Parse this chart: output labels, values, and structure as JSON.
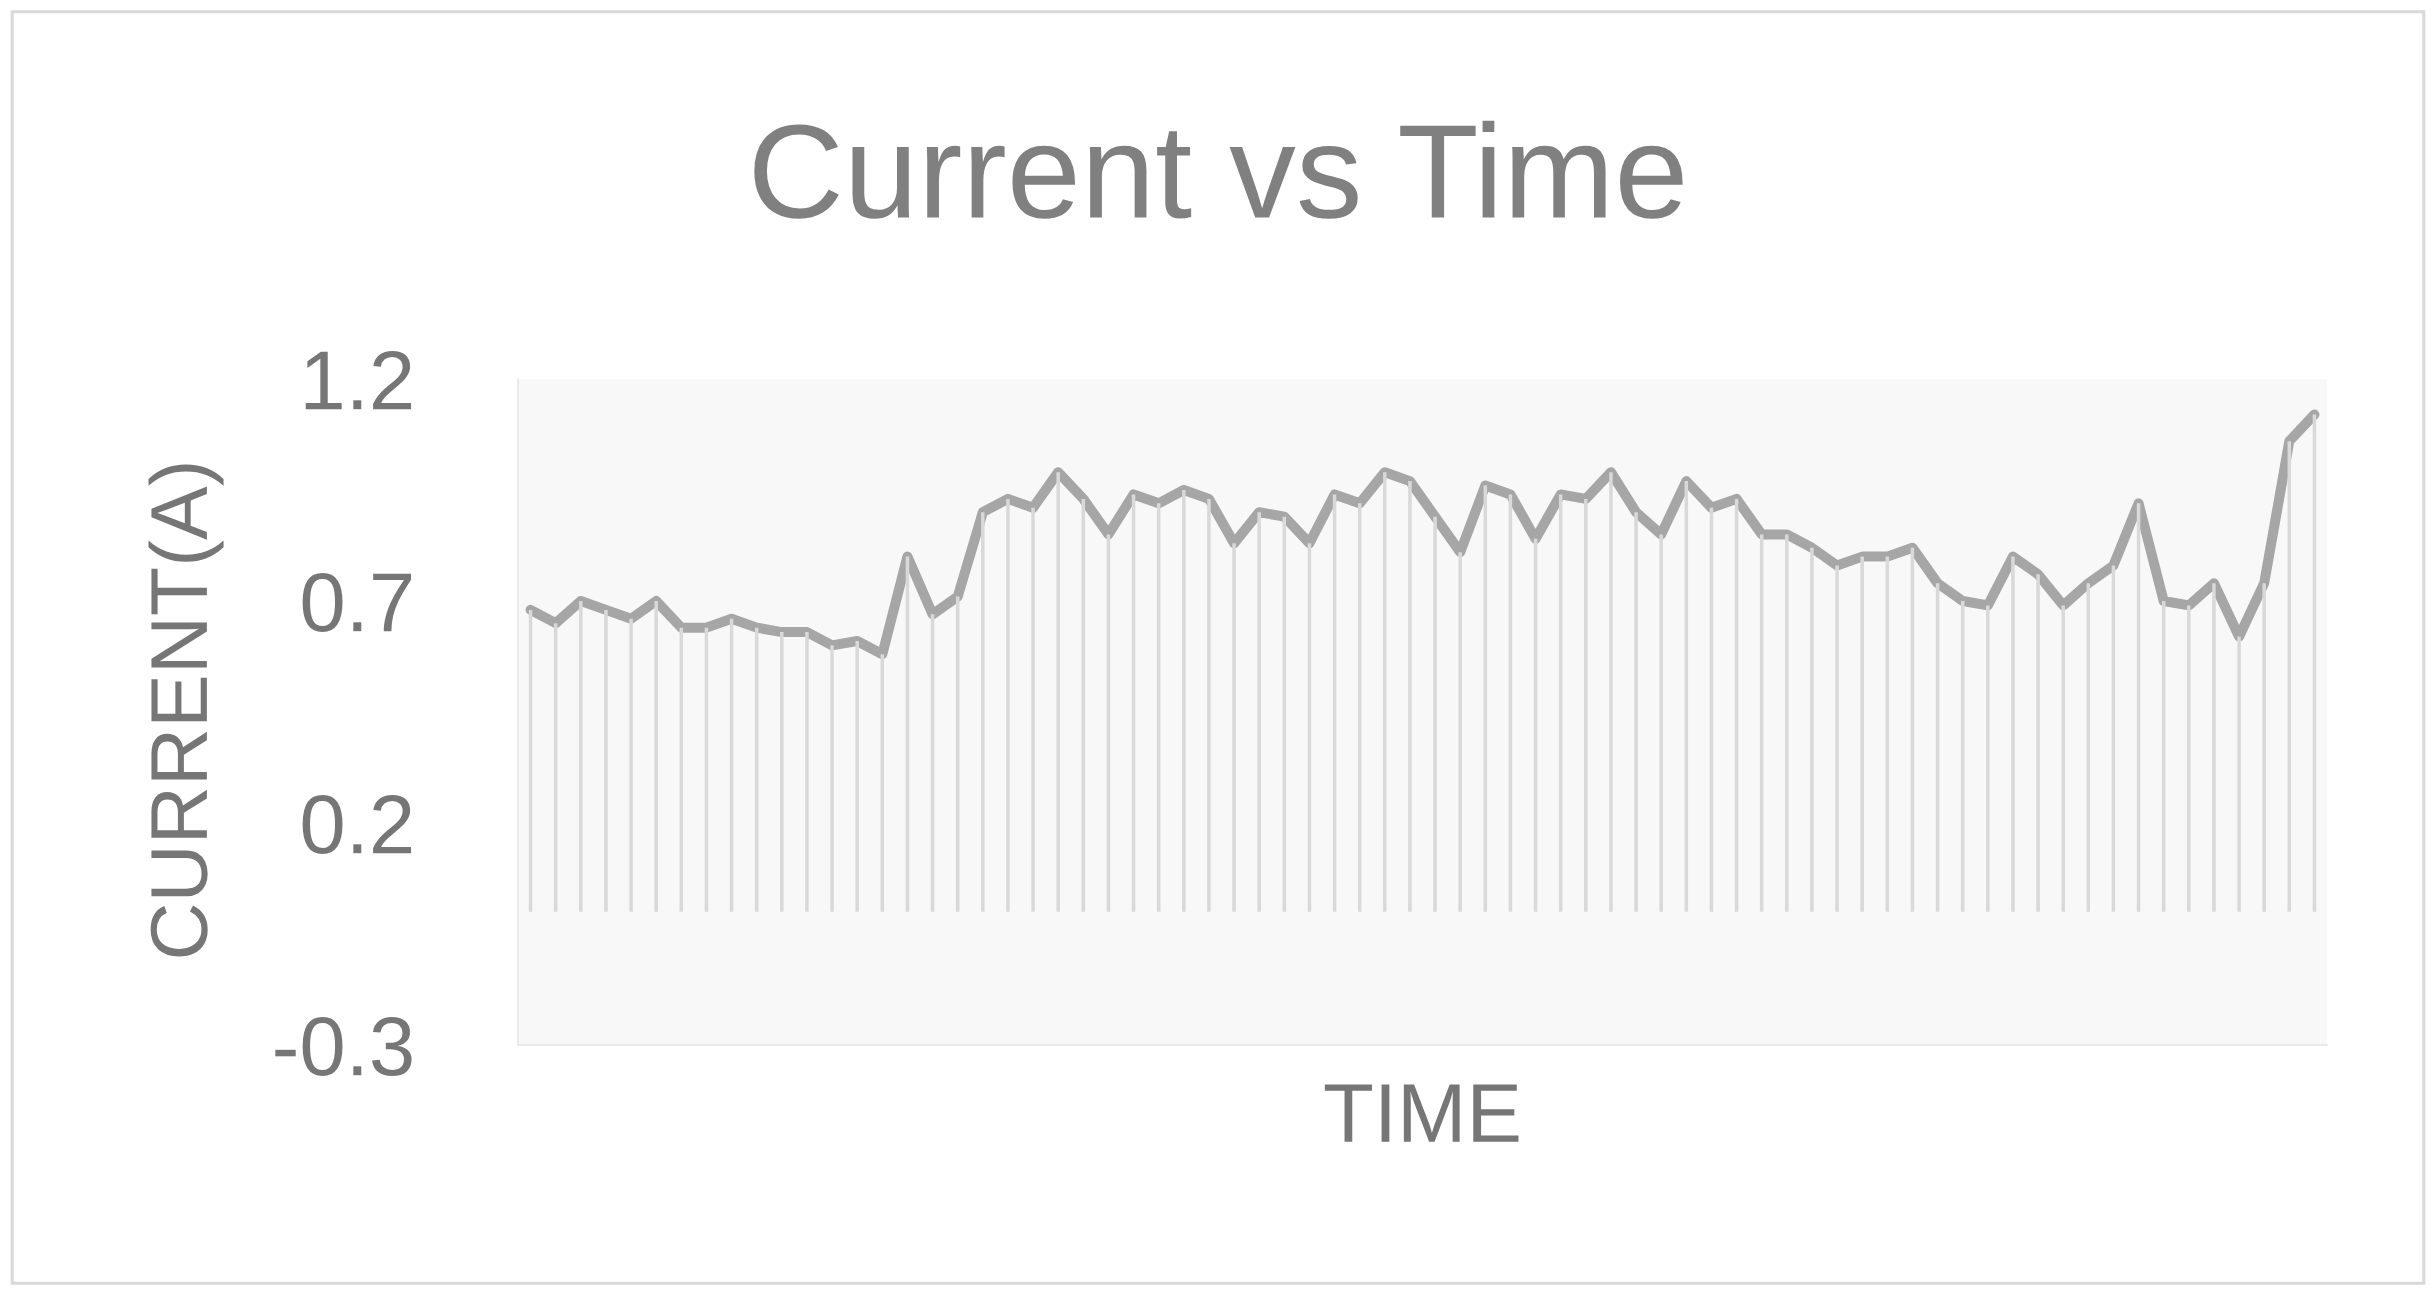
{
  "chart_data": {
    "type": "line",
    "title": "Current vs Time",
    "xlabel": "TIME",
    "ylabel": "CURRENT(A)",
    "categories": [
      null,
      null,
      null,
      null,
      null,
      null,
      null,
      null,
      null,
      null,
      null,
      null,
      null,
      null,
      null,
      null,
      null,
      null,
      null,
      null,
      null,
      null,
      null,
      null,
      null,
      null,
      null,
      null,
      null,
      null,
      null,
      null,
      null,
      null,
      null,
      null,
      null,
      null,
      null,
      null,
      null,
      null,
      null,
      null,
      null,
      null,
      null,
      null,
      null,
      null,
      null,
      null,
      null,
      null,
      null,
      null,
      null,
      null,
      null,
      null,
      null,
      null,
      null,
      null,
      null,
      null,
      null,
      null,
      null,
      null,
      null,
      null
    ],
    "series": [
      {
        "type": "bar",
        "color": "#d9d9d9",
        "values": [
          0.68,
          0.65,
          0.7,
          0.68,
          0.66,
          0.7,
          0.64,
          0.64,
          0.66,
          0.64,
          0.63,
          0.63,
          0.6,
          0.61,
          0.58,
          0.8,
          0.67,
          0.71,
          0.9,
          0.93,
          0.91,
          0.99,
          0.93,
          0.85,
          0.94,
          0.92,
          0.95,
          0.93,
          0.83,
          0.9,
          0.89,
          0.83,
          0.94,
          0.92,
          0.99,
          0.97,
          0.89,
          0.81,
          0.96,
          0.94,
          0.84,
          0.94,
          0.93,
          0.99,
          0.9,
          0.85,
          0.97,
          0.91,
          0.93,
          0.85,
          0.85,
          0.82,
          0.78,
          0.8,
          0.8,
          0.82,
          0.74,
          0.7,
          0.69,
          0.8,
          0.76,
          0.69,
          0.74,
          0.78,
          0.92,
          0.7,
          0.69,
          0.74,
          0.62,
          0.74,
          1.06,
          1.12
        ]
      },
      {
        "color": "#a6a6a6",
        "values": [
          0.68,
          0.65,
          0.7,
          0.68,
          0.66,
          0.7,
          0.64,
          0.64,
          0.66,
          0.64,
          0.63,
          0.63,
          0.6,
          0.61,
          0.58,
          0.8,
          0.67,
          0.71,
          0.9,
          0.93,
          0.91,
          0.99,
          0.93,
          0.85,
          0.94,
          0.92,
          0.95,
          0.93,
          0.83,
          0.9,
          0.89,
          0.83,
          0.94,
          0.92,
          0.99,
          0.97,
          0.89,
          0.81,
          0.96,
          0.94,
          0.84,
          0.94,
          0.93,
          0.99,
          0.9,
          0.85,
          0.97,
          0.91,
          0.93,
          0.85,
          0.85,
          0.82,
          0.78,
          0.8,
          0.8,
          0.82,
          0.74,
          0.7,
          0.69,
          0.8,
          0.76,
          0.69,
          0.74,
          0.78,
          0.92,
          0.7,
          0.69,
          0.74,
          0.62,
          0.74,
          1.06,
          1.12
        ]
      }
    ],
    "ylim": [
      -0.3,
      1.2
    ],
    "yticks": [
      1.2,
      0.7,
      0.2,
      -0.3
    ],
    "grid": false,
    "tick_labels": "y"
  }
}
